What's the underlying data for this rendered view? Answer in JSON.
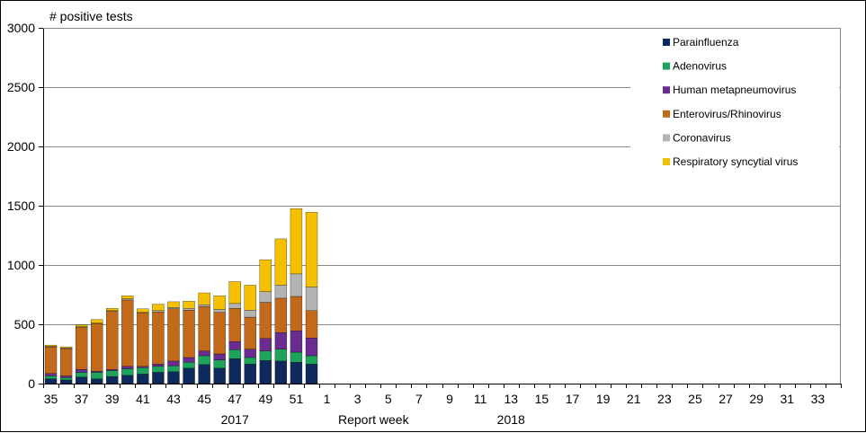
{
  "chart_data": {
    "type": "bar",
    "stacked": true,
    "ytitle": "# positive tests",
    "xlabel": "Report  week",
    "ylim": [
      0,
      3000
    ],
    "yticks": [
      0,
      500,
      1000,
      1500,
      2000,
      2500,
      3000
    ],
    "grid": true,
    "legend_position": "top-right",
    "week_labels": [
      "35",
      "36",
      "37",
      "38",
      "39",
      "40",
      "41",
      "42",
      "43",
      "44",
      "45",
      "46",
      "47",
      "48",
      "49",
      "50",
      "51",
      "52",
      "1",
      "2",
      "3",
      "4",
      "5",
      "6",
      "7",
      "8",
      "9",
      "10",
      "11",
      "12",
      "13",
      "14",
      "15",
      "16",
      "17",
      "18",
      "19",
      "20",
      "21",
      "22",
      "23",
      "24",
      "25",
      "26",
      "27",
      "28",
      "29",
      "30",
      "31",
      "32",
      "33",
      "34"
    ],
    "shown_tick_labels": [
      "35",
      "37",
      "39",
      "41",
      "43",
      "45",
      "47",
      "49",
      "51",
      "1",
      "3",
      "5",
      "7",
      "9",
      "11",
      "13",
      "15",
      "17",
      "19",
      "21",
      "23",
      "25",
      "27",
      "29",
      "31",
      "33"
    ],
    "year_labels": [
      {
        "text": "2017",
        "at_week": "47"
      },
      {
        "text": "2018",
        "at_week": "13"
      }
    ],
    "series": [
      {
        "name": "Parainfluenza",
        "color": "#0e2a5c",
        "values": [
          40,
          30,
          55,
          40,
          60,
          70,
          80,
          95,
          100,
          130,
          160,
          130,
          210,
          165,
          195,
          190,
          180,
          165
        ]
      },
      {
        "name": "Adenovirus",
        "color": "#1ea35a",
        "values": [
          25,
          20,
          40,
          55,
          50,
          55,
          55,
          50,
          50,
          50,
          75,
          70,
          75,
          55,
          80,
          100,
          85,
          70
        ]
      },
      {
        "name": "Human metapneumovirus",
        "color": "#6a2c91",
        "values": [
          20,
          15,
          25,
          10,
          10,
          20,
          10,
          20,
          40,
          40,
          40,
          50,
          70,
          70,
          105,
          140,
          180,
          150
        ]
      },
      {
        "name": "Enterovirus/Rhinovirus",
        "color": "#c36a1a",
        "values": [
          225,
          230,
          355,
          400,
          490,
          560,
          450,
          440,
          440,
          400,
          375,
          350,
          280,
          270,
          305,
          290,
          290,
          230
        ]
      },
      {
        "name": "Coronavirus",
        "color": "#b3b3b3",
        "values": [
          5,
          5,
          5,
          5,
          5,
          10,
          5,
          10,
          10,
          15,
          15,
          25,
          40,
          60,
          90,
          110,
          190,
          200
        ]
      },
      {
        "name": "Respiratory syncytial virus",
        "color": "#f5c000",
        "values": [
          10,
          10,
          15,
          30,
          20,
          25,
          30,
          55,
          50,
          60,
          100,
          115,
          185,
          210,
          270,
          390,
          550,
          630
        ]
      }
    ]
  }
}
